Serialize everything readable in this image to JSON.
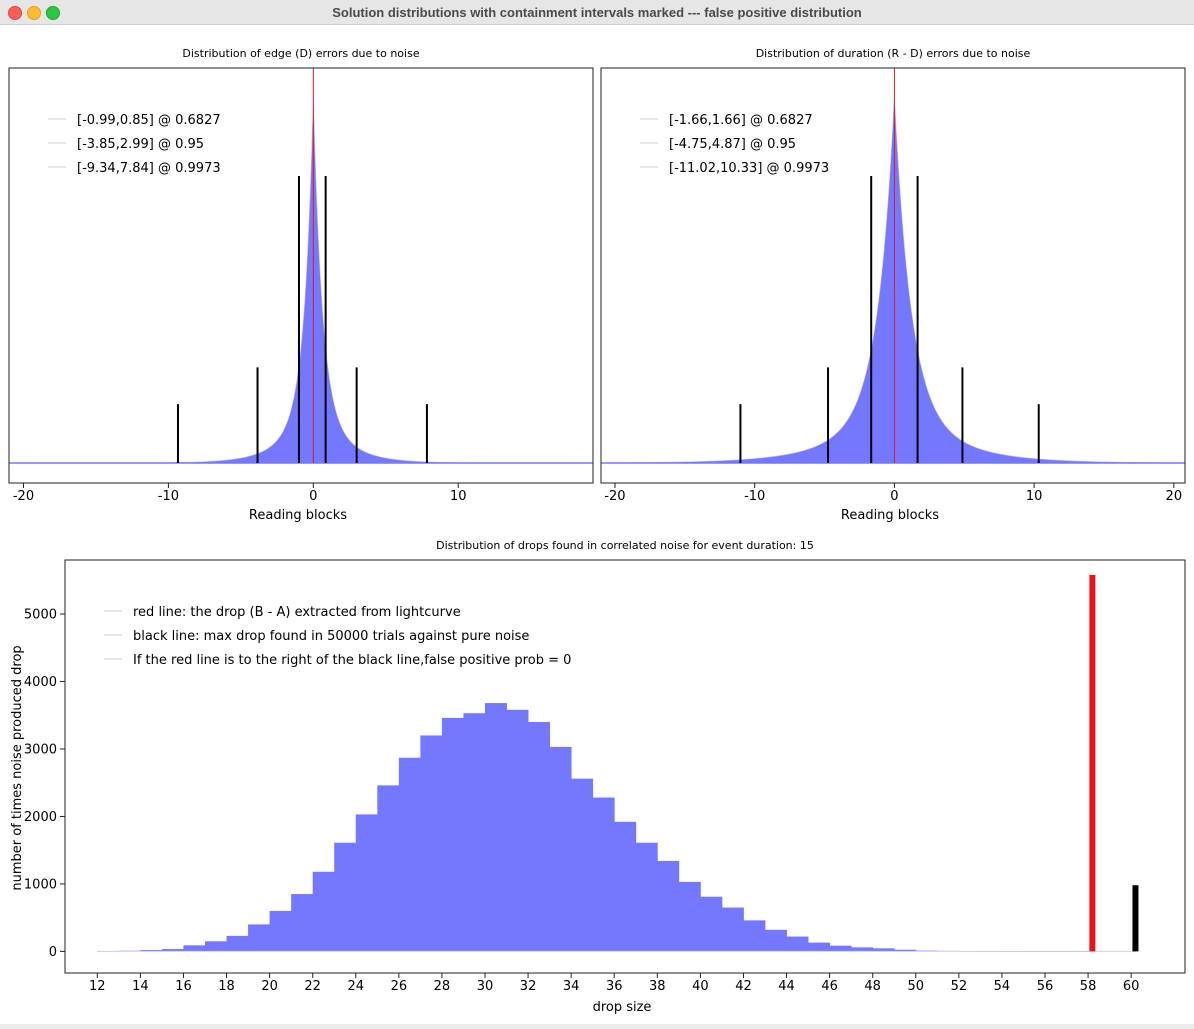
{
  "window": {
    "title": "Solution distributions with containment intervals marked --- false positive distribution"
  },
  "colors": {
    "histogram": "#7478ff",
    "histogram_edge": "#bdbde8",
    "red": "#e8141a",
    "black": "#000000",
    "frame": "#222222"
  },
  "chart_data": [
    {
      "type": "bar",
      "title": "Distribution of edge (D) errors due to noise",
      "xlabel": "Reading blocks",
      "ylabel": "",
      "xlim": [
        -21.0,
        19.3
      ],
      "ylim": [
        0,
        1.0
      ],
      "xticks": [
        -20,
        -10,
        0,
        10
      ],
      "legend_position": "top-left",
      "legend": [
        "[-0.99,0.85] @ 0.6827",
        "[-3.85,2.99] @ 0.95",
        "[-9.34,7.84] @ 0.9973"
      ],
      "peak_center": 0.0,
      "peak_scale": 0.6,
      "red_line_x": 0.0,
      "intervals": [
        {
          "lo": -0.99,
          "hi": 0.85,
          "confidence": 0.6827,
          "marker_height": 0.78
        },
        {
          "lo": -3.85,
          "hi": 2.99,
          "confidence": 0.95,
          "marker_height": 0.26
        },
        {
          "lo": -9.34,
          "hi": 7.84,
          "confidence": 0.9973,
          "marker_height": 0.16
        }
      ]
    },
    {
      "type": "bar",
      "title": "Distribution of duration (R - D) errors due to noise",
      "xlabel": "Reading blocks",
      "ylabel": "",
      "xlim": [
        -21.0,
        20.8
      ],
      "ylim": [
        0,
        1.0
      ],
      "xticks": [
        -20,
        -10,
        0,
        10,
        20
      ],
      "legend_position": "top-left",
      "legend": [
        "[-1.66,1.66] @ 0.6827",
        "[-4.75,4.87] @ 0.95",
        "[-11.02,10.33] @ 0.9973"
      ],
      "peak_center": 0.0,
      "peak_scale": 1.15,
      "red_line_x": 0.0,
      "intervals": [
        {
          "lo": -1.66,
          "hi": 1.66,
          "confidence": 0.6827,
          "marker_height": 0.78
        },
        {
          "lo": -4.75,
          "hi": 4.87,
          "confidence": 0.95,
          "marker_height": 0.26
        },
        {
          "lo": -11.02,
          "hi": 10.33,
          "confidence": 0.9973,
          "marker_height": 0.16
        }
      ]
    },
    {
      "type": "bar",
      "title": "Distribution of drops found in correlated noise for event duration: 15",
      "xlabel": "drop size",
      "ylabel": "number of times noise produced drop",
      "xlim": [
        10.5,
        62.5
      ],
      "ylim": [
        -320,
        5800
      ],
      "xticks": [
        12,
        14,
        16,
        18,
        20,
        22,
        24,
        26,
        28,
        30,
        32,
        34,
        36,
        38,
        40,
        42,
        44,
        46,
        48,
        50,
        52,
        54,
        56,
        58,
        60
      ],
      "yticks": [
        0,
        1000,
        2000,
        3000,
        4000,
        5000
      ],
      "legend_position": "top-left",
      "legend": [
        "red line: the drop (B - A) extracted from lightcurve",
        "black line: max drop found in 50000 trials against pure noise",
        "If the red line is to the right of the black line,false positive prob = 0"
      ],
      "bin_width": 1,
      "bins_start": [
        12,
        13,
        14,
        15,
        16,
        17,
        18,
        19,
        20,
        21,
        22,
        23,
        24,
        25,
        26,
        27,
        28,
        29,
        30,
        31,
        32,
        33,
        34,
        35,
        36,
        37,
        38,
        39,
        40,
        41,
        42,
        43,
        44,
        45,
        46,
        47,
        48,
        49,
        50,
        51,
        52,
        53,
        54,
        55,
        56,
        57
      ],
      "counts": [
        5,
        10,
        20,
        35,
        90,
        150,
        230,
        400,
        600,
        850,
        1180,
        1610,
        2030,
        2460,
        2870,
        3200,
        3460,
        3530,
        3680,
        3580,
        3400,
        3030,
        2560,
        2280,
        1920,
        1610,
        1340,
        1030,
        810,
        650,
        460,
        320,
        220,
        130,
        85,
        60,
        45,
        25,
        12,
        8,
        5,
        3,
        2,
        1,
        1,
        1
      ],
      "red_line": {
        "x": 58.2,
        "value": 5580
      },
      "black_line": {
        "x": 60.2,
        "value": 980
      }
    }
  ]
}
